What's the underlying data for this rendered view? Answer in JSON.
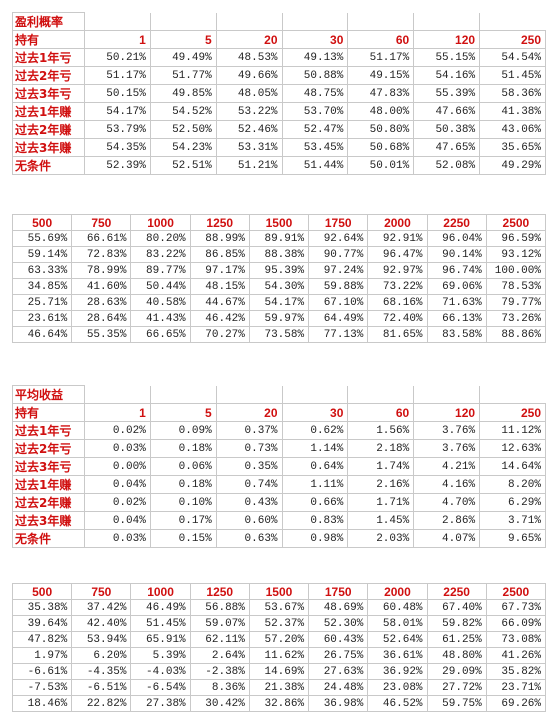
{
  "win_rate": {
    "title": "盈利概率",
    "hold_label": "持有",
    "cols_a": [
      "1",
      "5",
      "20",
      "30",
      "60",
      "120",
      "250"
    ],
    "rows_a": [
      {
        "label": "过去1年亏",
        "values": [
          "50.21%",
          "49.49%",
          "48.53%",
          "49.13%",
          "51.17%",
          "55.15%",
          "54.54%"
        ]
      },
      {
        "label": "过去2年亏",
        "values": [
          "51.17%",
          "51.77%",
          "49.66%",
          "50.88%",
          "49.15%",
          "54.16%",
          "51.45%"
        ]
      },
      {
        "label": "过去3年亏",
        "values": [
          "50.15%",
          "49.85%",
          "48.05%",
          "48.75%",
          "47.83%",
          "55.39%",
          "58.36%"
        ]
      },
      {
        "label": "过去1年赚",
        "values": [
          "54.17%",
          "54.52%",
          "53.22%",
          "53.70%",
          "48.00%",
          "47.66%",
          "41.38%"
        ]
      },
      {
        "label": "过去2年赚",
        "values": [
          "53.79%",
          "52.50%",
          "52.46%",
          "52.47%",
          "50.80%",
          "50.38%",
          "43.06%"
        ]
      },
      {
        "label": "过去3年赚",
        "values": [
          "54.35%",
          "54.23%",
          "53.31%",
          "53.45%",
          "50.68%",
          "47.65%",
          "35.65%"
        ]
      },
      {
        "label": "无条件",
        "values": [
          "52.39%",
          "52.51%",
          "51.21%",
          "51.44%",
          "50.01%",
          "52.08%",
          "49.29%"
        ]
      }
    ],
    "cols_b": [
      "500",
      "750",
      "1000",
      "1250",
      "1500",
      "1750",
      "2000",
      "2250",
      "2500"
    ],
    "rows_b": [
      [
        "55.69%",
        "66.61%",
        "80.20%",
        "88.99%",
        "89.91%",
        "92.64%",
        "92.91%",
        "96.04%",
        "96.59%"
      ],
      [
        "59.14%",
        "72.83%",
        "83.22%",
        "86.85%",
        "88.38%",
        "90.77%",
        "96.47%",
        "90.14%",
        "93.12%"
      ],
      [
        "63.33%",
        "78.99%",
        "89.77%",
        "97.17%",
        "95.39%",
        "97.24%",
        "92.97%",
        "96.74%",
        "100.00%"
      ],
      [
        "34.85%",
        "41.60%",
        "50.44%",
        "48.15%",
        "54.30%",
        "59.88%",
        "73.22%",
        "69.06%",
        "78.53%"
      ],
      [
        "25.71%",
        "28.63%",
        "40.58%",
        "44.67%",
        "54.17%",
        "67.10%",
        "68.16%",
        "71.63%",
        "79.77%"
      ],
      [
        "23.61%",
        "28.64%",
        "41.43%",
        "46.42%",
        "59.97%",
        "64.49%",
        "72.40%",
        "66.13%",
        "73.26%"
      ],
      [
        "46.64%",
        "55.35%",
        "66.65%",
        "70.27%",
        "73.58%",
        "77.13%",
        "81.65%",
        "83.58%",
        "88.86%"
      ]
    ]
  },
  "avg_return": {
    "title": "平均收益",
    "hold_label": "持有",
    "cols_a": [
      "1",
      "5",
      "20",
      "30",
      "60",
      "120",
      "250"
    ],
    "rows_a": [
      {
        "label": "过去1年亏",
        "values": [
          "0.02%",
          "0.09%",
          "0.37%",
          "0.62%",
          "1.56%",
          "3.76%",
          "11.12%"
        ]
      },
      {
        "label": "过去2年亏",
        "values": [
          "0.03%",
          "0.18%",
          "0.73%",
          "1.14%",
          "2.18%",
          "3.76%",
          "12.63%"
        ]
      },
      {
        "label": "过去3年亏",
        "values": [
          "0.00%",
          "0.06%",
          "0.35%",
          "0.64%",
          "1.74%",
          "4.21%",
          "14.64%"
        ]
      },
      {
        "label": "过去1年赚",
        "values": [
          "0.04%",
          "0.18%",
          "0.74%",
          "1.11%",
          "2.16%",
          "4.16%",
          "8.20%"
        ]
      },
      {
        "label": "过去2年赚",
        "values": [
          "0.02%",
          "0.10%",
          "0.43%",
          "0.66%",
          "1.71%",
          "4.70%",
          "6.29%"
        ]
      },
      {
        "label": "过去3年赚",
        "values": [
          "0.04%",
          "0.17%",
          "0.60%",
          "0.83%",
          "1.45%",
          "2.86%",
          "3.71%"
        ]
      },
      {
        "label": "无条件",
        "values": [
          "0.03%",
          "0.15%",
          "0.63%",
          "0.98%",
          "2.03%",
          "4.07%",
          "9.65%"
        ]
      }
    ],
    "cols_b": [
      "500",
      "750",
      "1000",
      "1250",
      "1500",
      "1750",
      "2000",
      "2250",
      "2500"
    ],
    "rows_b": [
      [
        "35.38%",
        "37.42%",
        "46.49%",
        "56.88%",
        "53.67%",
        "48.69%",
        "60.48%",
        "67.40%",
        "67.73%"
      ],
      [
        "39.64%",
        "42.40%",
        "51.45%",
        "59.07%",
        "52.37%",
        "52.30%",
        "58.01%",
        "59.82%",
        "66.09%"
      ],
      [
        "47.82%",
        "53.94%",
        "65.91%",
        "62.11%",
        "57.20%",
        "60.43%",
        "52.64%",
        "61.25%",
        "73.08%"
      ],
      [
        "1.97%",
        "6.20%",
        "5.39%",
        "2.64%",
        "11.62%",
        "26.75%",
        "36.61%",
        "48.80%",
        "41.26%"
      ],
      [
        "-6.61%",
        "-4.35%",
        "-4.03%",
        "-2.38%",
        "14.69%",
        "27.63%",
        "36.92%",
        "29.09%",
        "35.82%"
      ],
      [
        "-7.53%",
        "-6.51%",
        "-6.54%",
        "8.36%",
        "21.38%",
        "24.48%",
        "23.08%",
        "27.72%",
        "23.71%"
      ],
      [
        "18.46%",
        "22.82%",
        "27.38%",
        "30.42%",
        "32.86%",
        "36.98%",
        "46.52%",
        "59.75%",
        "69.26%"
      ]
    ]
  }
}
